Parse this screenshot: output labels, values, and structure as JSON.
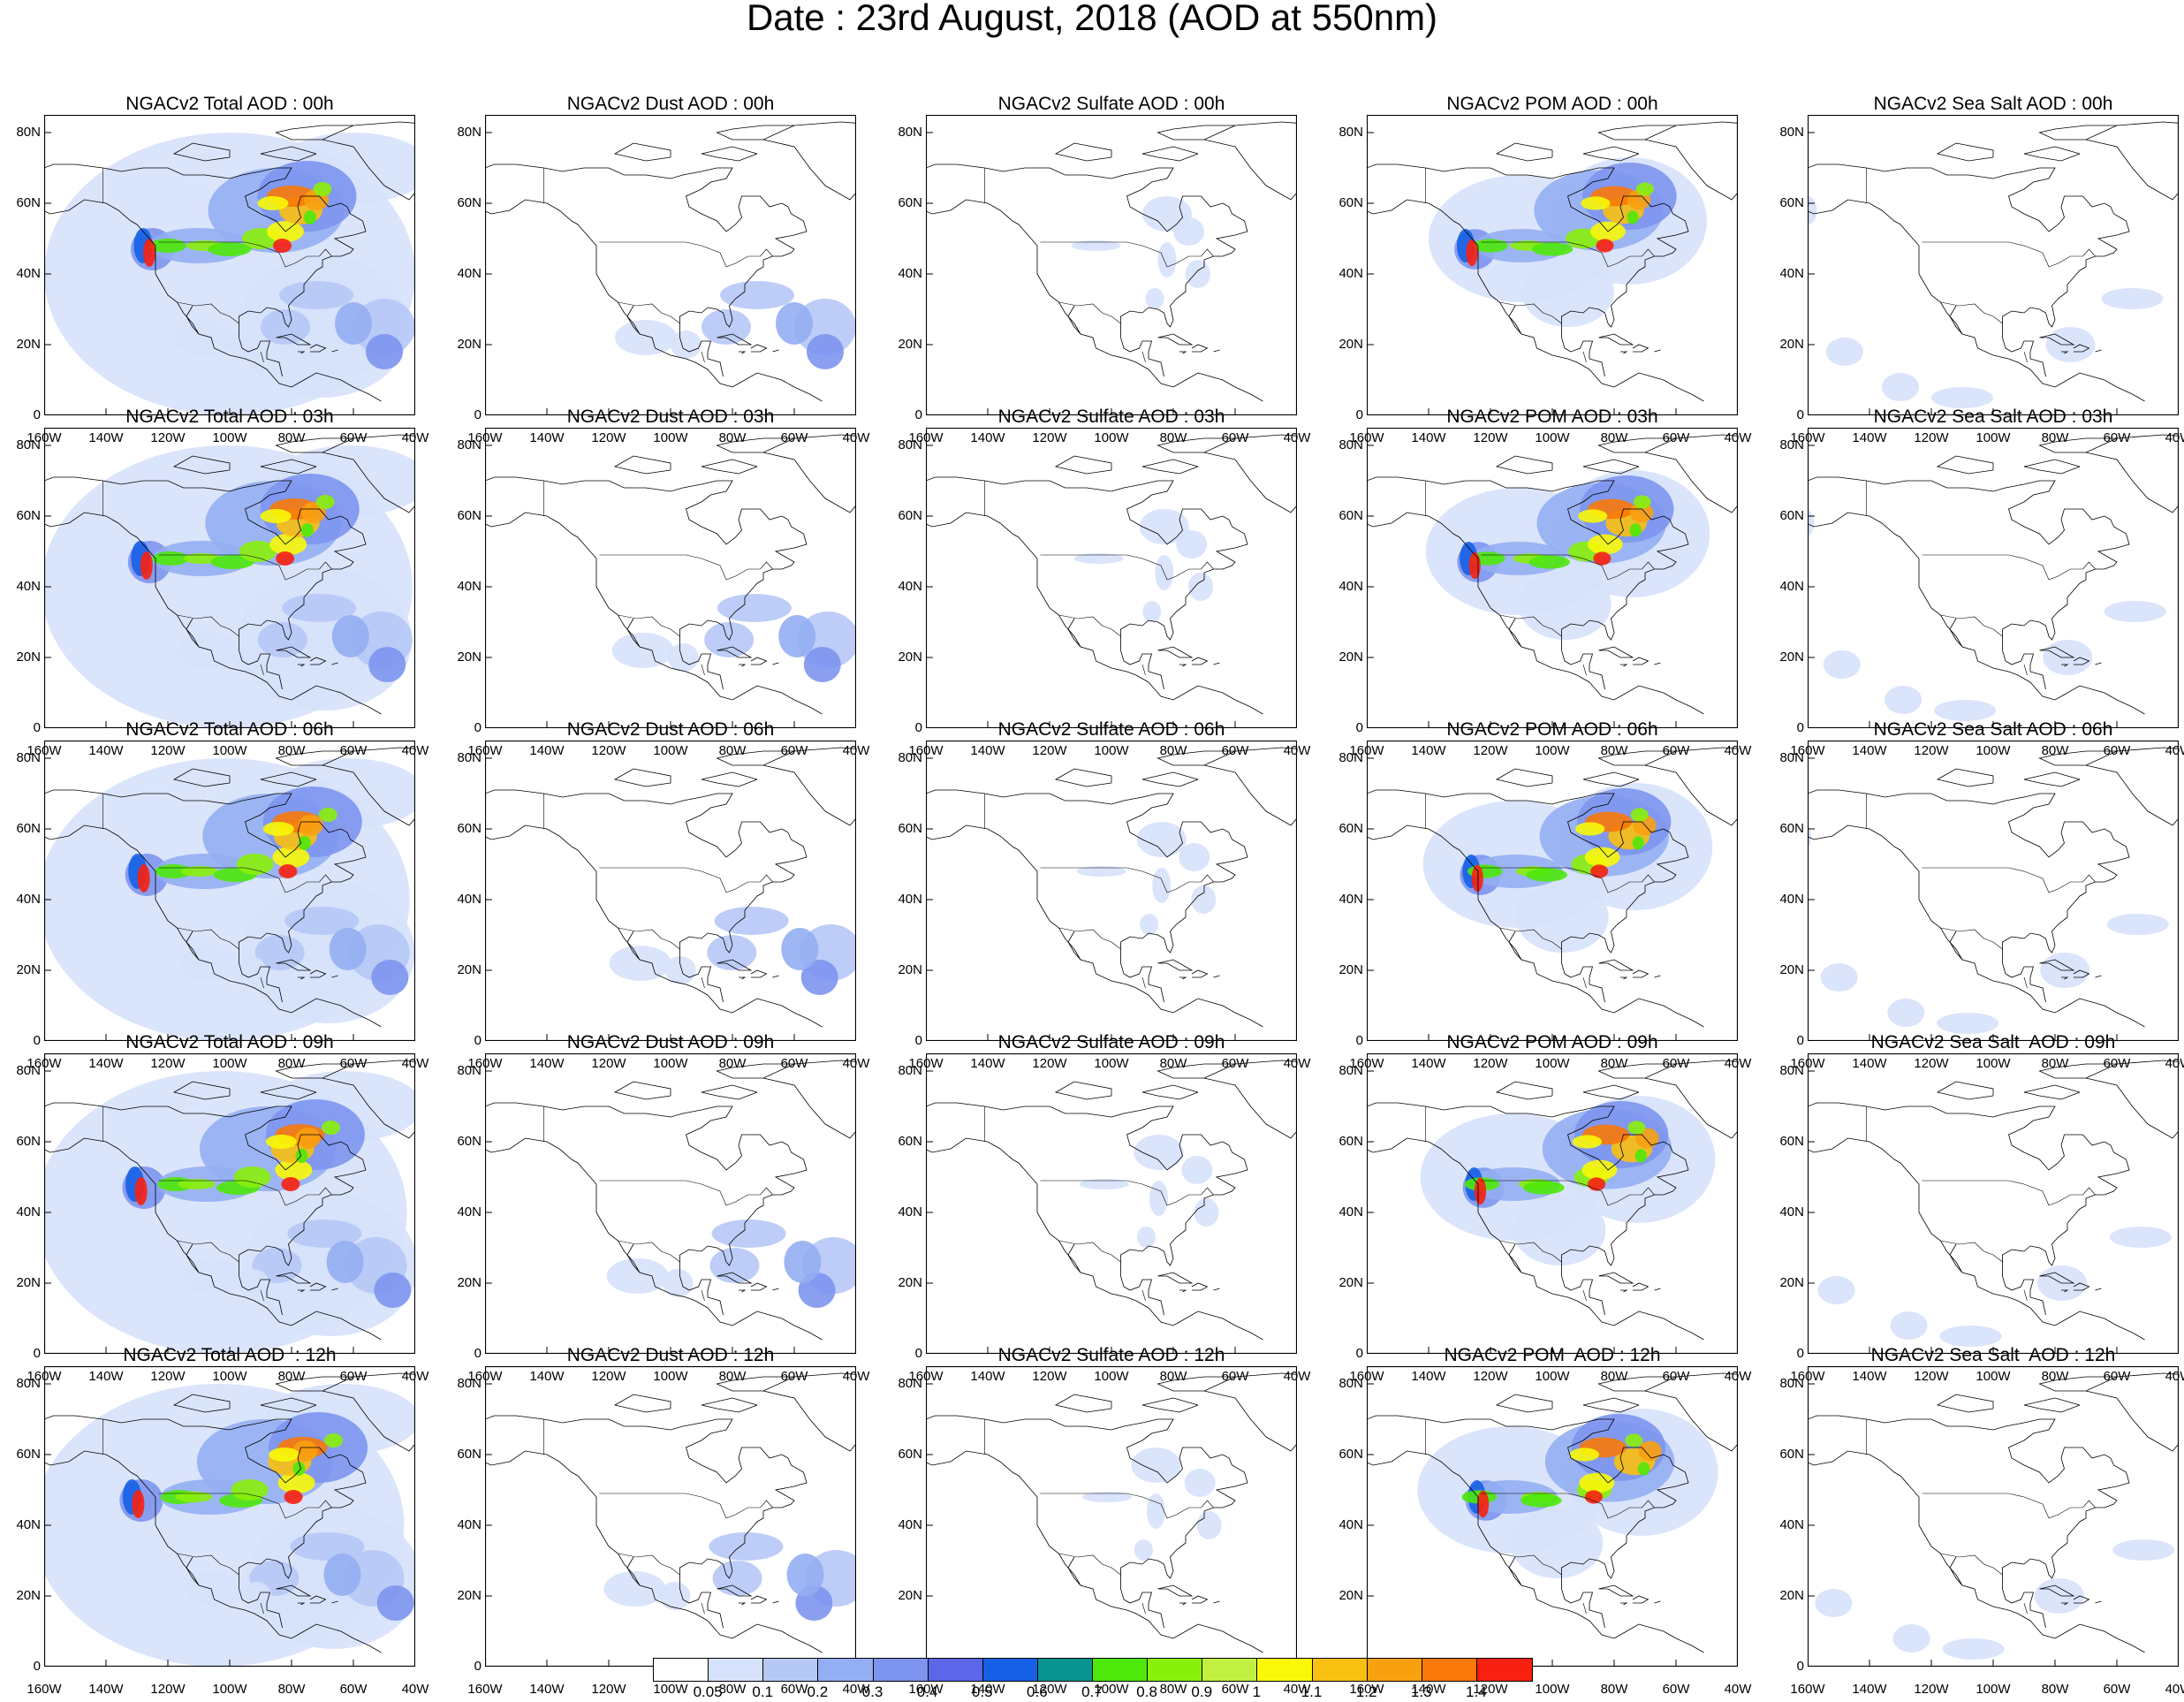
{
  "title": "Date : 23rd August, 2018 (AOD at 550nm)",
  "y_tick_labels": [
    "80N",
    "60N",
    "40N",
    "20N",
    "0"
  ],
  "x_tick_labels": [
    "160W",
    "140W",
    "120W",
    "100W",
    "80W",
    "60W",
    "40W"
  ],
  "rows": [
    {
      "hour": "00h",
      "titles": [
        "NGACv2 Total AOD : 00h",
        "NGACv2 Dust AOD : 00h",
        "NGACv2 Sulfate AOD : 00h",
        "NGACv2 POM AOD : 00h",
        "NGACv2 Sea Salt AOD : 00h"
      ]
    },
    {
      "hour": "03h",
      "titles": [
        "NGACv2 Total AOD : 03h",
        "NGACv2 Dust AOD : 03h",
        "NGACv2 Sulfate AOD : 03h",
        "NGACv2 POM AOD : 03h",
        "NGACv2 Sea Salt AOD : 03h"
      ]
    },
    {
      "hour": "06h",
      "titles": [
        "NGACv2 Total AOD : 06h",
        "NGACv2 Dust AOD : 06h",
        "NGACv2 Sulfate AOD : 06h",
        "NGACv2 POM AOD : 06h",
        "NGACv2 Sea Salt AOD : 06h"
      ]
    },
    {
      "hour": "09h",
      "titles": [
        "NGACv2 Total AOD : 09h",
        "NGACv2 Dust AOD : 09h",
        "NGACv2 Sulfate AOD : 09h",
        "NGACv2 POM AOD : 09h",
        "NGACv2 Sea Salt  AOD : 09h"
      ]
    },
    {
      "hour": "12h",
      "titles": [
        "NGACv2 Total AOD  : 12h",
        "NGACv2 Dust AOD : 12h",
        "NGACv2 Sulfate AOD : 12h",
        "NGACv2 POM  AOD : 12h",
        "NGACv2 Sea Salt  AOD : 12h"
      ]
    }
  ],
  "species": [
    "total",
    "dust",
    "sulfate",
    "pom",
    "seasalt"
  ],
  "colorbar": {
    "labels": [
      "0.05",
      "0.1",
      "0.2",
      "0.3",
      "0.4",
      "0.5",
      "0.6",
      "0.7",
      "0.8",
      "0.9",
      "1",
      "1.1",
      "1.2",
      "1.3",
      "1.4"
    ],
    "colors": [
      "#ffffff",
      "#d6e1fb",
      "#b6c8f6",
      "#93aef2",
      "#7d95ee",
      "#5b66e8",
      "#1560e6",
      "#0a9490",
      "#4ee80a",
      "#89f00a",
      "#c2f040",
      "#f8f808",
      "#f8c010",
      "#f8a010",
      "#f87808",
      "#f82010"
    ]
  }
}
